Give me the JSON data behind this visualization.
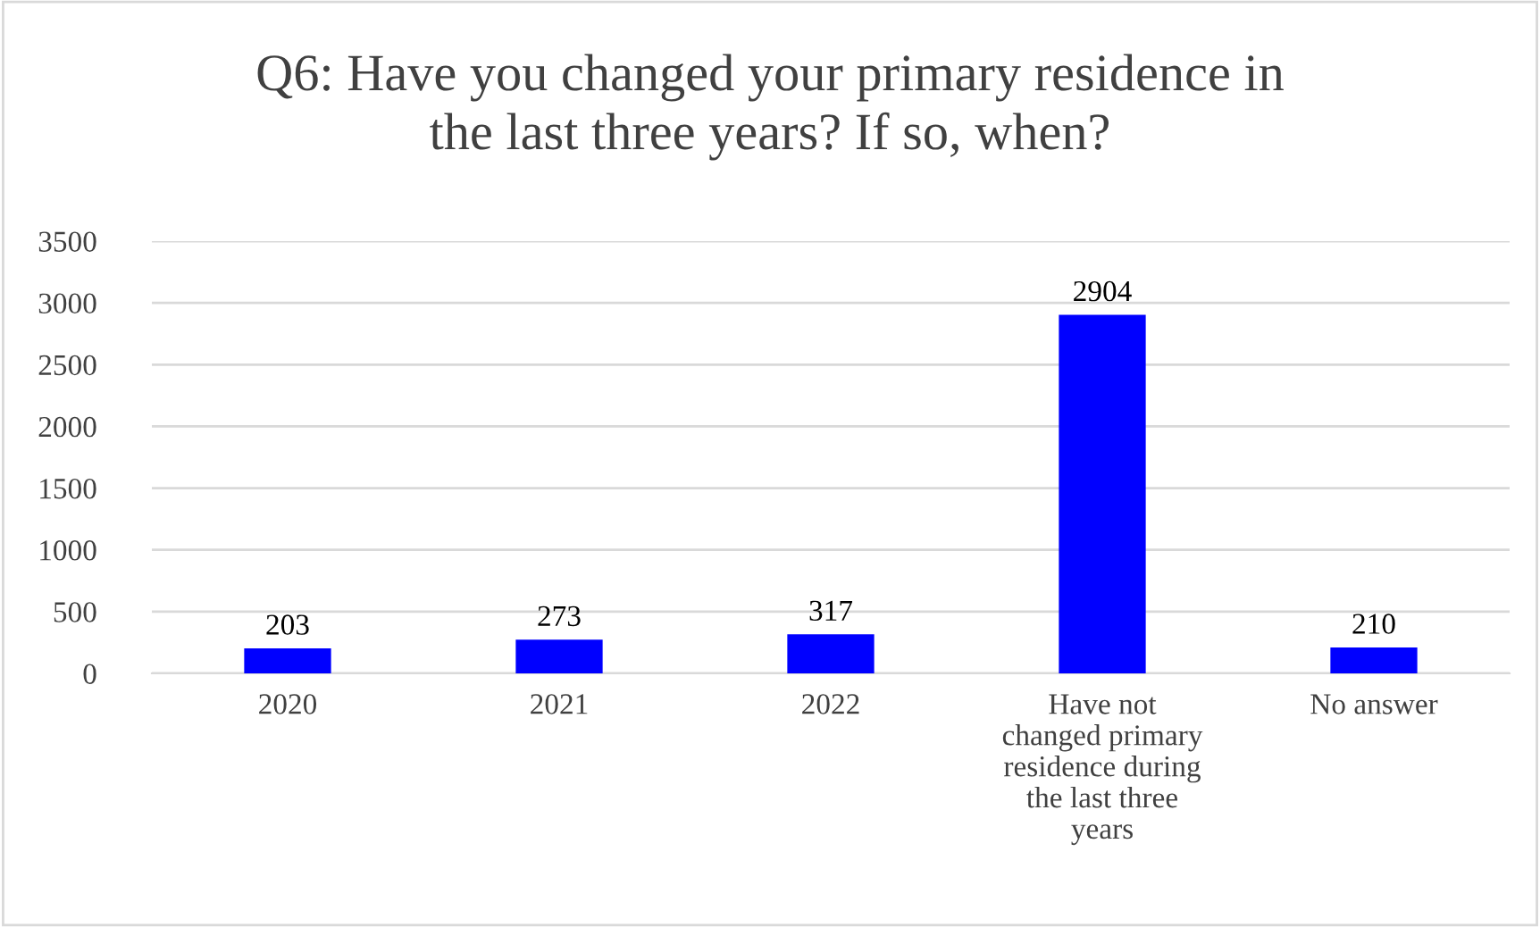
{
  "chart_data": {
    "type": "bar",
    "title": "Q6: Have you changed your primary residence in\nthe last three years? If so, when?",
    "categories": [
      "2020",
      "2021",
      "2022",
      "Have not\nchanged primary\nresidence during\nthe last three\nyears",
      "No answer"
    ],
    "values": [
      203,
      273,
      317,
      2904,
      210
    ],
    "color": "#0000ff",
    "ylim": [
      0,
      3500
    ],
    "yticks": [
      0,
      500,
      1000,
      1500,
      2000,
      2500,
      3000,
      3500
    ],
    "grid": "y",
    "data_labels": true
  }
}
